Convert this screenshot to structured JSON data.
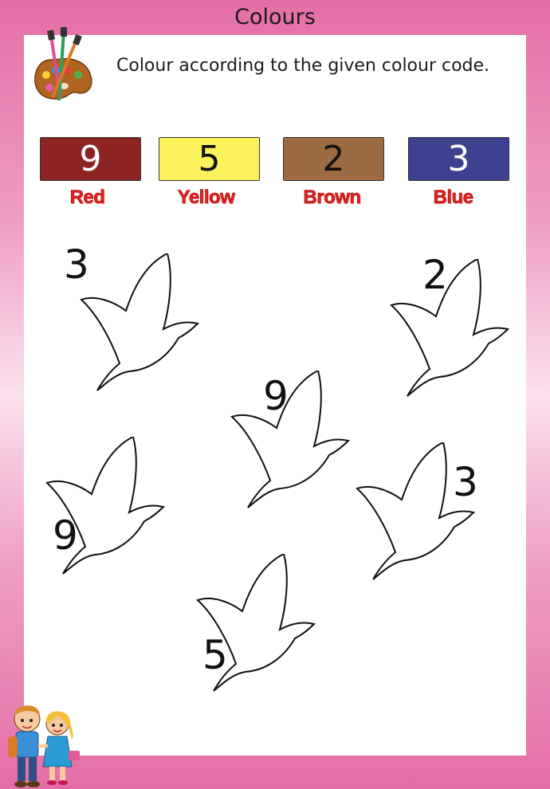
{
  "header": {
    "title": "Colours"
  },
  "instruction": "Colour according to the given colour code.",
  "colour_code": [
    {
      "number": "9",
      "label": "Red",
      "color": "#8c2424",
      "text_color": "#ffffff"
    },
    {
      "number": "5",
      "label": "Yellow",
      "color": "#fbf25c",
      "text_color": "#111111"
    },
    {
      "number": "2",
      "label": "Brown",
      "color": "#9c6b41",
      "text_color": "#111111"
    },
    {
      "number": "3",
      "label": "Blue",
      "color": "#3e418f",
      "text_color": "#ffffff"
    }
  ],
  "birds": [
    {
      "number": "3"
    },
    {
      "number": "2"
    },
    {
      "number": "9"
    },
    {
      "number": "9"
    },
    {
      "number": "3"
    },
    {
      "number": "5"
    }
  ]
}
